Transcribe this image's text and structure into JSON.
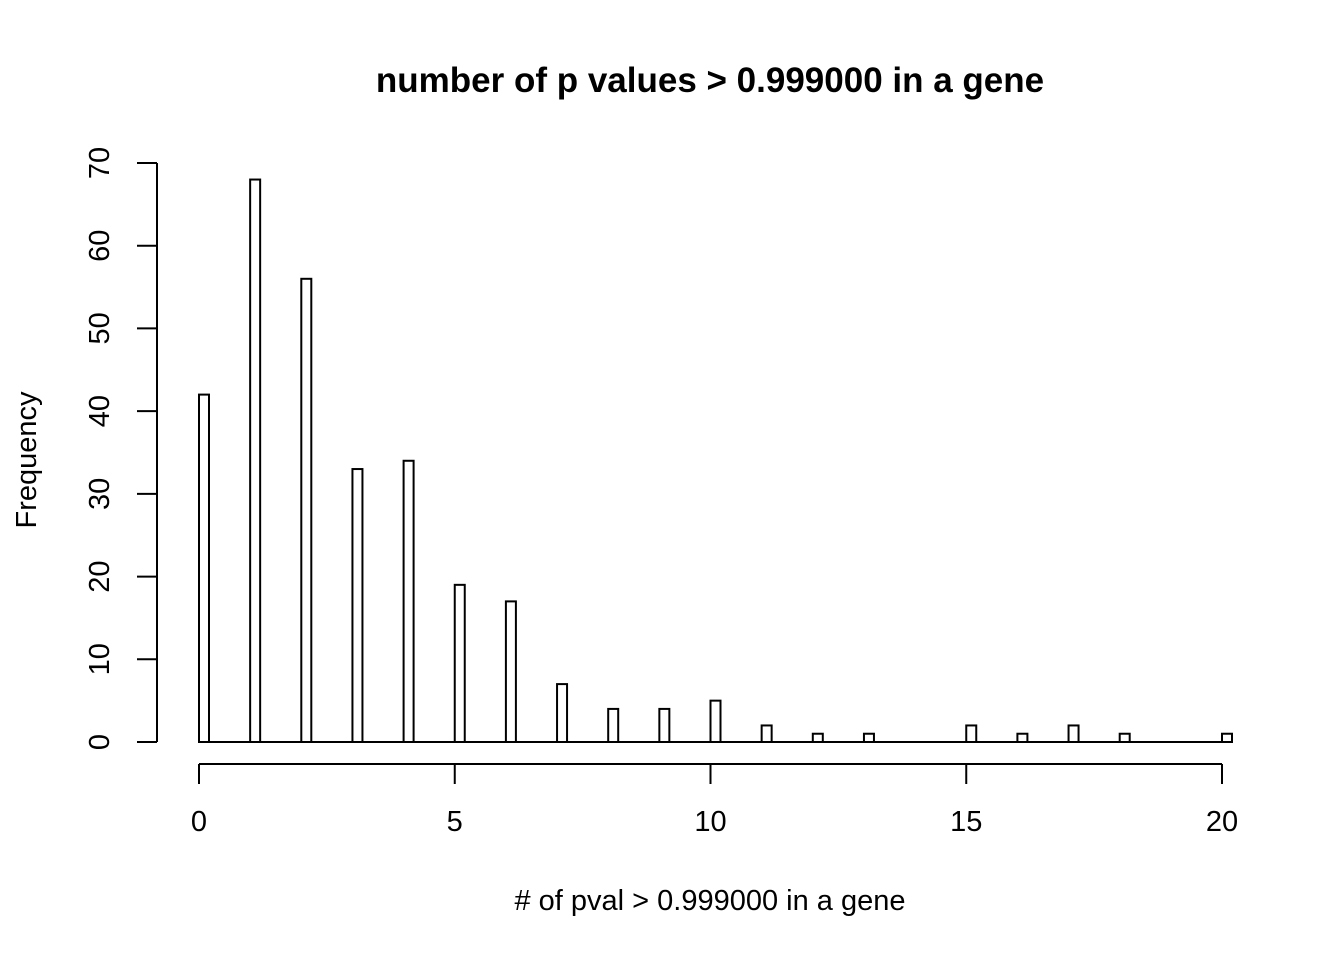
{
  "chart_data": {
    "type": "bar",
    "title": "number of p values > 0.999000 in a gene",
    "xlabel": "# of pval > 0.999000 in a gene",
    "ylabel": "Frequency",
    "x": [
      0,
      1,
      2,
      3,
      4,
      5,
      6,
      7,
      8,
      9,
      10,
      11,
      12,
      13,
      14,
      15,
      16,
      17,
      18,
      19,
      20
    ],
    "values": [
      42,
      68,
      56,
      33,
      34,
      19,
      17,
      7,
      4,
      4,
      5,
      2,
      1,
      1,
      0,
      2,
      1,
      2,
      1,
      0,
      1
    ],
    "xlim": [
      0,
      20
    ],
    "ylim": [
      0,
      70
    ],
    "xticks": [
      "0",
      "5",
      "10",
      "15",
      "20"
    ],
    "yticks": [
      "0",
      "10",
      "20",
      "30",
      "40",
      "50",
      "60",
      "70"
    ],
    "grid": false,
    "legend": "none",
    "colors": {
      "bar_fill": "#ffffff",
      "bar_stroke": "#000000"
    }
  }
}
